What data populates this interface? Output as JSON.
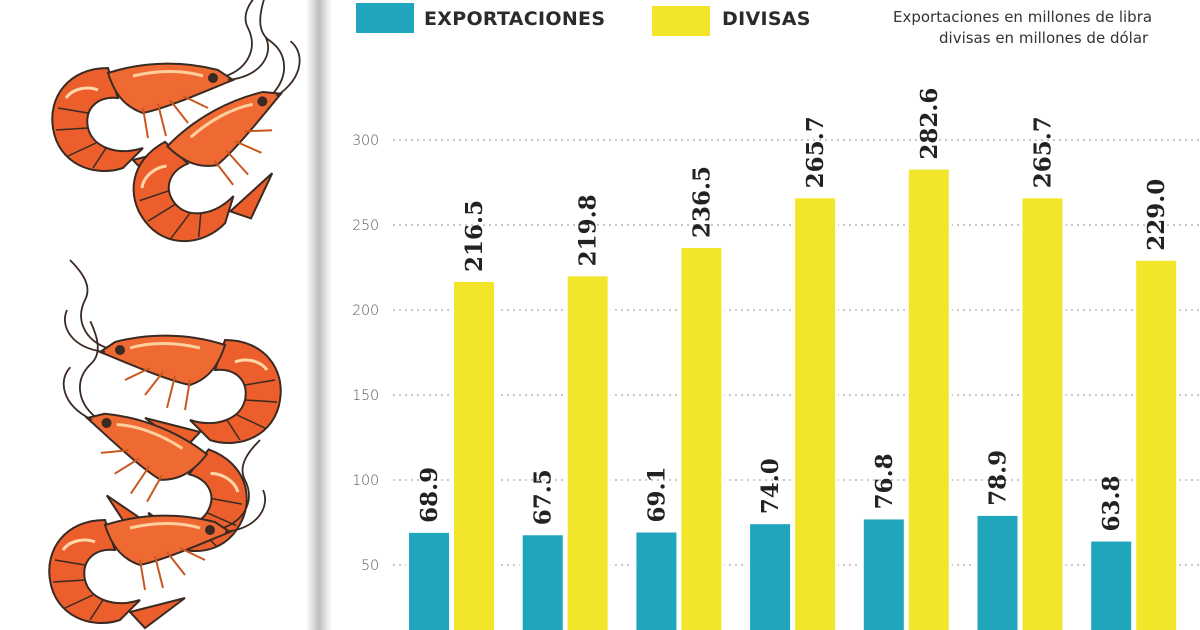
{
  "legend": {
    "items": [
      {
        "label": "EXPORTACIONES",
        "color": "#1fa6bd"
      },
      {
        "label": "DIVISAS",
        "color": "#f2e52a"
      }
    ]
  },
  "note": {
    "line1": "Exportaciones en  millones de libra",
    "line2": "divisas en millones de dólar"
  },
  "illustration": {
    "icon": "shrimp-illustration",
    "count": 5
  },
  "chart_data": {
    "type": "bar",
    "title": "",
    "xlabel": "",
    "ylabel": "",
    "ylim": [
      0,
      300
    ],
    "yticks": [
      50,
      100,
      150,
      200,
      250,
      300
    ],
    "grid": true,
    "legend_position": "top",
    "categories": [
      "1",
      "2",
      "3",
      "4",
      "5",
      "6",
      "7"
    ],
    "category_labels_visible": false,
    "series": [
      {
        "name": "EXPORTACIONES",
        "color": "#1fa6bd",
        "values": [
          68.9,
          67.5,
          69.1,
          74.0,
          76.8,
          78.9,
          63.8
        ],
        "labels": [
          "68.9",
          "67.5",
          "69.1",
          "74.0",
          "76.8",
          "78.9",
          "63.8"
        ]
      },
      {
        "name": "DIVISAS",
        "color": "#f2e52a",
        "values": [
          216.5,
          219.8,
          236.5,
          265.7,
          282.6,
          265.7,
          229.0
        ],
        "labels": [
          "216.5",
          "219.8",
          "236.5",
          "265.7",
          "282.6",
          "265.7",
          "229.0"
        ]
      }
    ]
  }
}
